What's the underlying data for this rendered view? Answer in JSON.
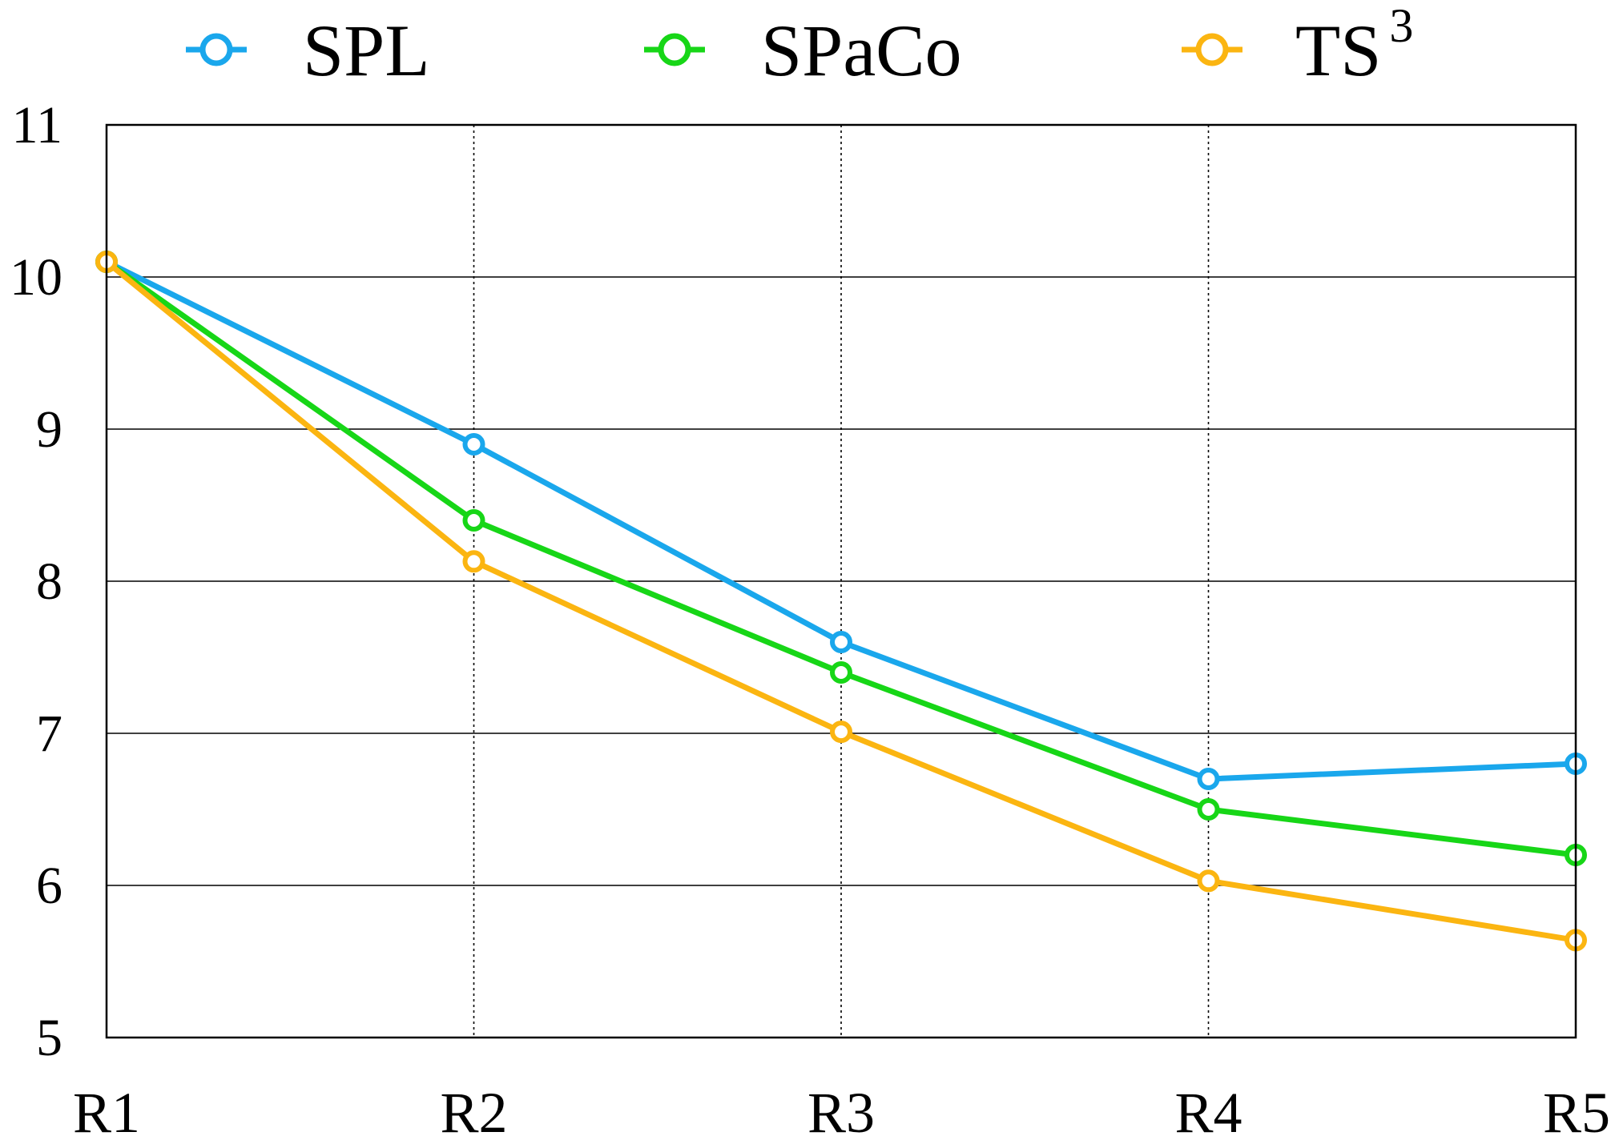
{
  "chart_data": {
    "type": "line",
    "title": "",
    "xlabel": "",
    "ylabel": "",
    "categories": [
      "R1",
      "R2",
      "R3",
      "R4",
      "R5"
    ],
    "ylim": [
      5,
      11
    ],
    "yticks": [
      "5",
      "6",
      "7",
      "8",
      "9",
      "10",
      "11"
    ],
    "grid": {
      "horizontal": "solid",
      "vertical": "dotted"
    },
    "legend_position": "top",
    "series": [
      {
        "name": "SPL",
        "color": "#1aa7ec",
        "values": [
          10.1,
          8.9,
          7.6,
          6.7,
          6.8
        ]
      },
      {
        "name": "SPaCo",
        "color": "#17d617",
        "values": [
          10.1,
          8.4,
          7.4,
          6.5,
          6.2
        ]
      },
      {
        "name": "TS",
        "name_sup": "3",
        "color": "#fbb511",
        "values": [
          10.1,
          8.13,
          7.01,
          6.03,
          5.64
        ]
      }
    ]
  }
}
